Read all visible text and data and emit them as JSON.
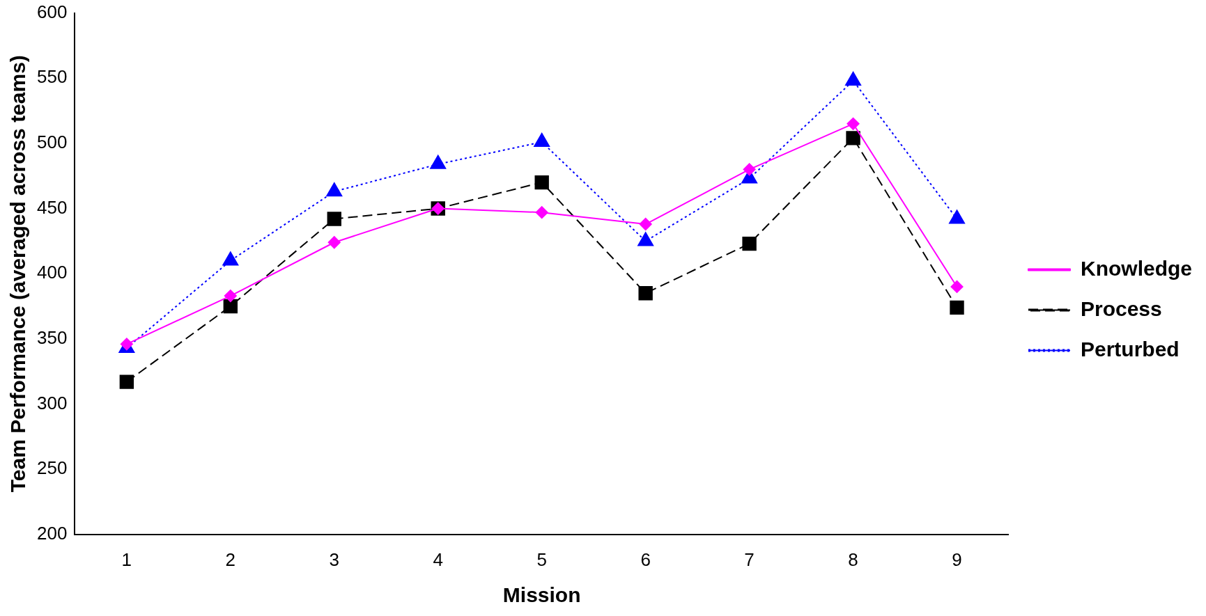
{
  "chart_data": {
    "type": "line",
    "xlabel": "Mission",
    "ylabel": "Team Performance (averaged across teams)",
    "categories": [
      "1",
      "2",
      "3",
      "4",
      "5",
      "6",
      "7",
      "8",
      "9"
    ],
    "series": [
      {
        "name": "Knowledge",
        "color": "#ff00ff",
        "marker": "diamond",
        "line_style": "solid",
        "values": [
          346,
          383,
          424,
          450,
          447,
          438,
          480,
          515,
          390
        ]
      },
      {
        "name": "Process",
        "color": "#000000",
        "marker": "square",
        "line_style": "dashed",
        "values": [
          317,
          375,
          442,
          450,
          470,
          385,
          423,
          504,
          374
        ]
      },
      {
        "name": "Perturbed",
        "color": "#0000ff",
        "marker": "triangle",
        "line_style": "dotted",
        "values": [
          343,
          410,
          463,
          484,
          501,
          425,
          473,
          548,
          442
        ]
      }
    ],
    "ylim": [
      200,
      600
    ],
    "yticks": [
      200,
      250,
      300,
      350,
      400,
      450,
      500,
      550,
      600
    ],
    "grid": false,
    "legend": "right"
  }
}
